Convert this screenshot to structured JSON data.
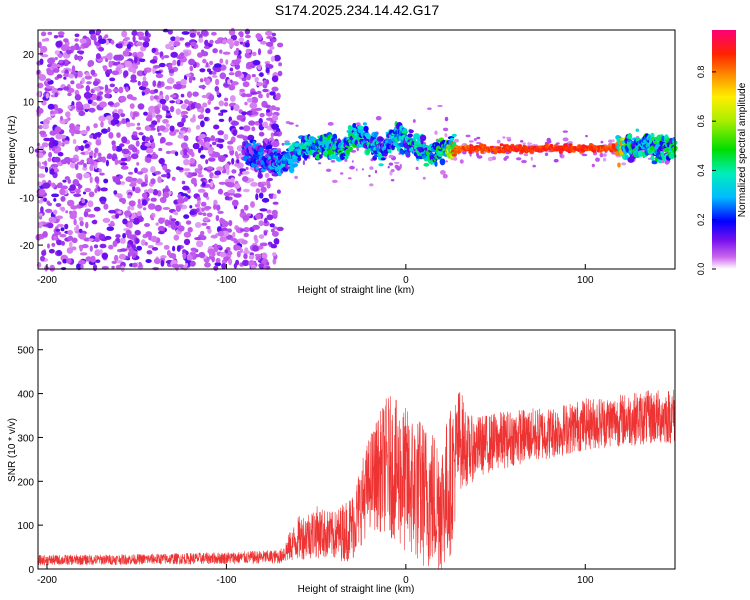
{
  "title": "S174.2025.234.14.42.G17",
  "chart_data": [
    {
      "type": "heatmap",
      "xlabel": "Height of straight line (km)",
      "ylabel": "Frequency (Hz)",
      "xlim": [
        -205,
        150
      ],
      "ylim": [
        -25,
        25
      ],
      "xticks": [
        -200,
        -100,
        0,
        100
      ],
      "yticks": [
        -20,
        -10,
        0,
        10,
        20
      ],
      "grid": false,
      "colorbar": {
        "label": "Normalized spectral amplitude",
        "range": [
          0,
          0.97
        ],
        "ticks": [
          0.0,
          0.2,
          0.4,
          0.6,
          0.8
        ]
      },
      "ridge": [
        {
          "x": -90,
          "y": 0.5,
          "amp": 0.25
        },
        {
          "x": -80,
          "y": -2.0,
          "amp": 0.3
        },
        {
          "x": -70,
          "y": -3.0,
          "amp": 0.35
        },
        {
          "x": -62,
          "y": -1.0,
          "amp": 0.4
        },
        {
          "x": -55,
          "y": 0.5,
          "amp": 0.45
        },
        {
          "x": -45,
          "y": 1.0,
          "amp": 0.5
        },
        {
          "x": -35,
          "y": 0.0,
          "amp": 0.45
        },
        {
          "x": -27,
          "y": 3.5,
          "amp": 0.5
        },
        {
          "x": -20,
          "y": 1.0,
          "amp": 0.45
        },
        {
          "x": -12,
          "y": 0.0,
          "amp": 0.4
        },
        {
          "x": -5,
          "y": 3.0,
          "amp": 0.45
        },
        {
          "x": 0,
          "y": 1.5,
          "amp": 0.45
        },
        {
          "x": 8,
          "y": 0.5,
          "amp": 0.45
        },
        {
          "x": 15,
          "y": -1.0,
          "amp": 0.5
        },
        {
          "x": 22,
          "y": 0.5,
          "amp": 0.55
        },
        {
          "x": 27,
          "y": 0.2,
          "amp": 0.9
        },
        {
          "x": 60,
          "y": 0.2,
          "amp": 0.95
        },
        {
          "x": 100,
          "y": 0.2,
          "amp": 0.95
        },
        {
          "x": 118,
          "y": 0.2,
          "amp": 0.9
        },
        {
          "x": 125,
          "y": 0.5,
          "amp": 0.5
        },
        {
          "x": 140,
          "y": 0.8,
          "amp": 0.5
        },
        {
          "x": 150,
          "y": 0.5,
          "amp": 0.5
        }
      ]
    },
    {
      "type": "line",
      "xlabel": "Height of straight line (km)",
      "ylabel": "SNR (10 * v/v)",
      "xlim": [
        -205,
        150
      ],
      "ylim": [
        0,
        545
      ],
      "xticks": [
        -200,
        -100,
        0,
        100
      ],
      "yticks": [
        0,
        100,
        200,
        300,
        400,
        500
      ],
      "grid": false,
      "series": [
        {
          "color": "#ee3333",
          "x": [
            -205,
            -150,
            -100,
            -70,
            -60,
            -50,
            -40,
            -30,
            -20,
            -10,
            0,
            10,
            20,
            25,
            30,
            35,
            40,
            60,
            80,
            100,
            120,
            150
          ],
          "values": [
            20,
            22,
            25,
            28,
            70,
            85,
            75,
            95,
            200,
            240,
            200,
            170,
            150,
            200,
            300,
            270,
            280,
            300,
            310,
            330,
            340,
            350
          ],
          "spread": [
            12,
            12,
            14,
            16,
            50,
            60,
            55,
            80,
            110,
            160,
            170,
            170,
            160,
            170,
            120,
            80,
            70,
            65,
            60,
            60,
            60,
            65
          ]
        }
      ]
    }
  ]
}
